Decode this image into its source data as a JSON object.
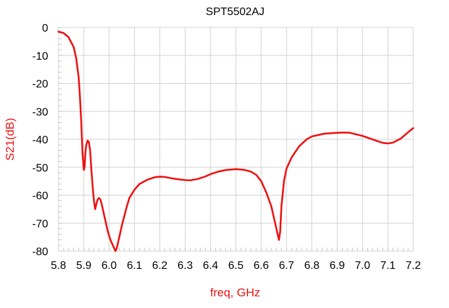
{
  "chart_data": {
    "type": "line",
    "title": "SPT5502AJ",
    "xlabel": "freq, GHz",
    "ylabel": "S21(dB)",
    "xlim": [
      5.8,
      7.2
    ],
    "ylim": [
      -80,
      0
    ],
    "x_ticks": [
      "5.8",
      "5.9",
      "6.0",
      "6.1",
      "6.2",
      "6.3",
      "6.4",
      "6.5",
      "6.6",
      "6.7",
      "6.8",
      "6.9",
      "7.0",
      "7.1",
      "7.2"
    ],
    "y_ticks": [
      "0",
      "-10",
      "-20",
      "-30",
      "-40",
      "-50",
      "-60",
      "-70",
      "-80"
    ],
    "grid": true,
    "legend": "none",
    "line_color": "#ee1111",
    "label_color": "#ee1111",
    "series": [
      {
        "x": [
          5.8,
          5.82,
          5.84,
          5.86,
          5.87,
          5.88,
          5.885,
          5.89,
          5.895,
          5.9,
          5.903,
          5.906,
          5.91,
          5.915,
          5.92,
          5.925,
          5.93,
          5.935,
          5.94,
          5.945,
          5.95,
          5.955,
          5.96,
          5.965,
          5.97,
          5.975,
          5.98,
          5.985,
          5.99,
          5.995,
          6.0,
          6.005,
          6.01,
          6.015,
          6.02,
          6.025,
          6.03,
          6.035,
          6.04,
          6.045,
          6.05,
          6.06,
          6.07,
          6.08,
          6.1,
          6.12,
          6.15,
          6.18,
          6.2,
          6.22,
          6.25,
          6.28,
          6.3,
          6.32,
          6.35,
          6.38,
          6.4,
          6.43,
          6.46,
          6.5,
          6.53,
          6.56,
          6.58,
          6.6,
          6.62,
          6.64,
          6.65,
          6.66,
          6.665,
          6.67,
          6.675,
          6.68,
          6.69,
          6.7,
          6.72,
          6.75,
          6.78,
          6.8,
          6.85,
          6.9,
          6.93,
          6.95,
          7.0,
          7.05,
          7.08,
          7.1,
          7.12,
          7.15,
          7.18,
          7.2
        ],
        "y": [
          -1.5,
          -2,
          -3.5,
          -7,
          -11,
          -18,
          -25,
          -34,
          -45,
          -51,
          -50,
          -45,
          -42,
          -40.5,
          -41,
          -44,
          -51,
          -57,
          -62,
          -65,
          -63,
          -61.5,
          -61,
          -61.5,
          -63,
          -65,
          -67,
          -69,
          -71,
          -73,
          -74.5,
          -76,
          -77,
          -78,
          -79,
          -80,
          -79,
          -77,
          -75,
          -73,
          -71,
          -67.5,
          -64,
          -61,
          -58,
          -56,
          -54.5,
          -53.6,
          -53.4,
          -53.5,
          -54,
          -54.4,
          -54.6,
          -54.7,
          -54.2,
          -53.3,
          -52.5,
          -51.6,
          -51,
          -50.7,
          -50.9,
          -51.6,
          -52.7,
          -55,
          -59,
          -64,
          -68,
          -72,
          -74,
          -76,
          -73,
          -64,
          -55,
          -50.5,
          -46.5,
          -42.5,
          -40,
          -39,
          -38,
          -37.7,
          -37.6,
          -37.7,
          -38.8,
          -40.4,
          -41.3,
          -41.5,
          -41.2,
          -39.8,
          -37.5,
          -36
        ]
      }
    ]
  }
}
